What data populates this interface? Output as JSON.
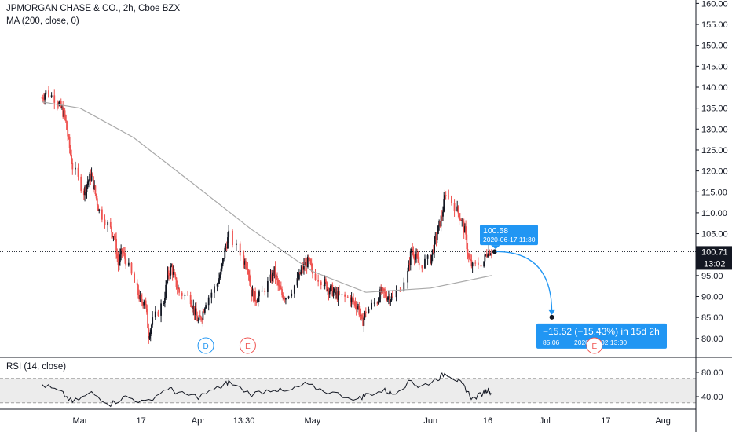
{
  "header": {
    "title": "JPMORGAN CHASE & CO., 2h, Cboe BZX",
    "ma_label": "MA (200, close, 0)",
    "rsi_label": "RSI (14, close)"
  },
  "colors": {
    "up": "#131722",
    "down": "#ef5350",
    "ma_line": "#a9a9a9",
    "accent_blue": "#2196f3",
    "event_red": "#ef5350",
    "rsi_band": "#ececec",
    "price_label_bg": "#131722"
  },
  "chart_data": [
    {
      "type": "candlestick",
      "title": "JPMORGAN CHASE & CO., 2h, Cboe BZX",
      "ylim": [
        75,
        160
      ],
      "y_ticks": [
        "160.00",
        "155.00",
        "150.00",
        "145.00",
        "140.00",
        "135.00",
        "130.00",
        "125.00",
        "120.00",
        "115.00",
        "110.00",
        "105.00",
        "100.00",
        "95.00",
        "90.00",
        "85.00",
        "80.00"
      ],
      "x_ticks": [
        "Mar",
        "17",
        "Apr",
        "13:30",
        "May",
        "Jun",
        "16",
        "Jul",
        "17",
        "Aug"
      ],
      "series": [
        {
          "name": "JPMORGAN CHASE & CO.",
          "close_path": [
            [
              "Feb 20",
              137.5
            ],
            [
              "Feb 21",
              138.8
            ],
            [
              "Feb 24",
              137.0
            ],
            [
              "Feb 25",
              135.0
            ],
            [
              "Feb 26",
              133.0
            ],
            [
              "Feb 27",
              127.0
            ],
            [
              "Feb 28",
              121.0
            ],
            [
              "Mar 2",
              115.0
            ],
            [
              "Mar 3",
              117.5
            ],
            [
              "Mar 4",
              119.0
            ],
            [
              "Mar 5",
              114.5
            ],
            [
              "Mar 6",
              110.5
            ],
            [
              "Mar 9",
              106.0
            ],
            [
              "Mar 10",
              104.5
            ],
            [
              "Mar 11",
              97.5
            ],
            [
              "Mar 12",
              101.0
            ],
            [
              "Mar 13",
              98.5
            ],
            [
              "Mar 16",
              91.5
            ],
            [
              "Mar 17",
              88.5
            ],
            [
              "Mar 18",
              89.5
            ],
            [
              "Mar 19",
              81.0
            ],
            [
              "Mar 20",
              84.0
            ],
            [
              "Mar 23",
              89.0
            ],
            [
              "Mar 24",
              95.0
            ],
            [
              "Mar 25",
              97.0
            ],
            [
              "Mar 26",
              93.5
            ],
            [
              "Mar 27",
              91.0
            ],
            [
              "Mar 30",
              89.5
            ],
            [
              "Mar 31",
              86.5
            ],
            [
              "Apr 1",
              84.0
            ],
            [
              "Apr 2",
              85.5
            ],
            [
              "Apr 3",
              89.0
            ],
            [
              "Apr 6",
              93.0
            ],
            [
              "Apr 7",
              96.0
            ],
            [
              "Apr 8",
              101.0
            ],
            [
              "Apr 9",
              104.5
            ],
            [
              "Apr 13",
              98.5
            ],
            [
              "Apr 14",
              97.5
            ],
            [
              "Apr 15",
              91.0
            ],
            [
              "Apr 16",
              89.5
            ],
            [
              "Apr 17",
              90.0
            ],
            [
              "Apr 20",
              94.0
            ],
            [
              "Apr 21",
              96.0
            ],
            [
              "Apr 22",
              92.5
            ],
            [
              "Apr 23",
              90.5
            ],
            [
              "Apr 24",
              90.0
            ],
            [
              "Apr 27",
              93.5
            ],
            [
              "Apr 28",
              96.0
            ],
            [
              "Apr 29",
              97.5
            ],
            [
              "Apr 30",
              98.5
            ],
            [
              "May 1",
              95.5
            ],
            [
              "May 4",
              93.5
            ],
            [
              "May 5",
              92.0
            ],
            [
              "May 6",
              91.5
            ],
            [
              "May 7",
              90.5
            ],
            [
              "May 8",
              90.0
            ],
            [
              "May 11",
              89.5
            ],
            [
              "May 12",
              88.5
            ],
            [
              "May 13",
              87.5
            ],
            [
              "May 14",
              83.5
            ],
            [
              "May 15",
              86.5
            ],
            [
              "May 18",
              89.0
            ],
            [
              "May 19",
              91.0
            ],
            [
              "May 20",
              90.5
            ],
            [
              "May 21",
              90.0
            ],
            [
              "May 22",
              89.5
            ],
            [
              "May 26",
              95.5
            ],
            [
              "May 27",
              101.5
            ],
            [
              "May 28",
              99.5
            ],
            [
              "May 29",
              97.5
            ],
            [
              "Jun 1",
              99.0
            ],
            [
              "Jun 2",
              102.5
            ],
            [
              "Jun 3",
              106.0
            ],
            [
              "Jun 4",
              109.5
            ],
            [
              "Jun 5",
              115.0
            ],
            [
              "Jun 8",
              110.5
            ],
            [
              "Jun 9",
              108.5
            ],
            [
              "Jun 10",
              105.5
            ],
            [
              "Jun 11",
              99.0
            ],
            [
              "Jun 12",
              97.0
            ],
            [
              "Jun 15",
              98.5
            ],
            [
              "Jun 16",
              101.0
            ],
            [
              "Jun 17",
              100.71
            ]
          ]
        },
        {
          "name": "MA (200, close, 0)",
          "values": [
            [
              "Feb 20",
              136.5
            ],
            [
              "Mar 1",
              135.0
            ],
            [
              "Mar 15",
              128.0
            ],
            [
              "Apr 1",
              116.0
            ],
            [
              "Apr 15",
              106.0
            ],
            [
              "May 1",
              96.0
            ],
            [
              "May 15",
              91.0
            ],
            [
              "Jun 1",
              92.0
            ],
            [
              "Jun 17",
              95.0
            ]
          ]
        }
      ],
      "current_price": {
        "value": "100.71",
        "countdown": "13:02"
      },
      "annotations": {
        "point_label": {
          "price": "100.58",
          "datetime": "2020-06-17 11:30"
        },
        "projection": {
          "change": "−15.52 (−15.43%) in 15d 2h",
          "target_price": "85.06",
          "target_datetime": "2020-07-02  13:30"
        },
        "events": [
          {
            "letter": "D",
            "kind": "dividend",
            "date": "Apr 3"
          },
          {
            "letter": "E",
            "kind": "earnings",
            "date": "Apr 14"
          },
          {
            "letter": "E",
            "kind": "earnings",
            "date": "Jul 14"
          }
        ]
      },
      "grid": false,
      "legend_position": "top-left"
    },
    {
      "type": "line",
      "title": "RSI (14, close)",
      "ylim": [
        20,
        90
      ],
      "y_ticks": [
        "80.00",
        "40.00"
      ],
      "band": [
        30,
        70
      ],
      "series": [
        {
          "name": "RSI (14, close)",
          "values": [
            [
              "Feb 20",
              60
            ],
            [
              "Feb 25",
              47
            ],
            [
              "Feb 28",
              31
            ],
            [
              "Mar 4",
              46
            ],
            [
              "Mar 9",
              28
            ],
            [
              "Mar 13",
              40
            ],
            [
              "Mar 18",
              30
            ],
            [
              "Mar 24",
              54
            ],
            [
              "Mar 27",
              45
            ],
            [
              "Apr 1",
              40
            ],
            [
              "Apr 7",
              56
            ],
            [
              "Apr 9",
              64
            ],
            [
              "Apr 15",
              44
            ],
            [
              "Apr 21",
              53
            ],
            [
              "Apr 24",
              47
            ],
            [
              "Apr 29",
              60
            ],
            [
              "May 5",
              48
            ],
            [
              "May 13",
              36
            ],
            [
              "May 15",
              43
            ],
            [
              "May 20",
              50
            ],
            [
              "May 22",
              45
            ],
            [
              "May 27",
              66
            ],
            [
              "May 29",
              55
            ],
            [
              "Jun 3",
              70
            ],
            [
              "Jun 5",
              79
            ],
            [
              "Jun 8",
              67
            ],
            [
              "Jun 10",
              55
            ],
            [
              "Jun 12",
              36
            ],
            [
              "Jun 15",
              47
            ],
            [
              "Jun 16",
              52
            ],
            [
              "Jun 17",
              44
            ]
          ]
        }
      ]
    }
  ]
}
